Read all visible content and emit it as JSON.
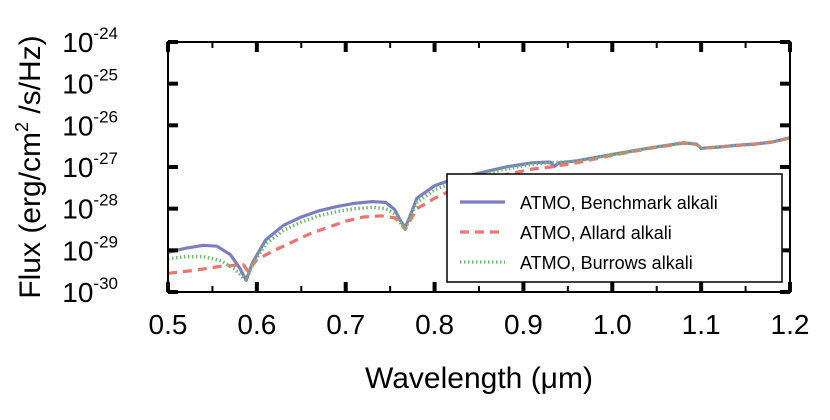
{
  "chart_data": {
    "type": "line",
    "xlabel": "Wavelength (μm)",
    "ylabel": "Flux (erg/cm² /s/Hz)",
    "ylabel_parts": {
      "pre": "Flux (erg/cm",
      "sup": "2",
      "post": " /s/Hz)"
    },
    "xlim": [
      0.5,
      1.2
    ],
    "ylim_log10": [
      -30,
      -24
    ],
    "x_ticks": [
      {
        "value": 0.5,
        "label": "0.5"
      },
      {
        "value": 0.6,
        "label": "0.6"
      },
      {
        "value": 0.7,
        "label": "0.7"
      },
      {
        "value": 0.8,
        "label": "0.8"
      },
      {
        "value": 0.9,
        "label": "0.9"
      },
      {
        "value": 1.0,
        "label": "1.0"
      },
      {
        "value": 1.1,
        "label": "1.1"
      },
      {
        "value": 1.2,
        "label": "1.2"
      }
    ],
    "y_ticks": [
      {
        "exp": -30,
        "base": "10",
        "sup": "-30"
      },
      {
        "exp": -29,
        "base": "10",
        "sup": "-29"
      },
      {
        "exp": -28,
        "base": "10",
        "sup": "-28"
      },
      {
        "exp": -27,
        "base": "10",
        "sup": "-27"
      },
      {
        "exp": -26,
        "base": "10",
        "sup": "-26"
      },
      {
        "exp": -25,
        "base": "10",
        "sup": "-25"
      },
      {
        "exp": -24,
        "base": "10",
        "sup": "-24"
      }
    ],
    "legend_position": "lower-right",
    "series": [
      {
        "name": "ATMO, Benchmark alkali",
        "color": "#7b7fc0",
        "style": "solid",
        "points": [
          [
            0.5,
            -29.05
          ],
          [
            0.52,
            -28.95
          ],
          [
            0.54,
            -28.88
          ],
          [
            0.555,
            -28.9
          ],
          [
            0.57,
            -29.1
          ],
          [
            0.58,
            -29.4
          ],
          [
            0.588,
            -29.72
          ],
          [
            0.595,
            -29.3
          ],
          [
            0.61,
            -28.75
          ],
          [
            0.63,
            -28.4
          ],
          [
            0.65,
            -28.2
          ],
          [
            0.67,
            -28.05
          ],
          [
            0.69,
            -27.95
          ],
          [
            0.71,
            -27.87
          ],
          [
            0.73,
            -27.83
          ],
          [
            0.745,
            -27.85
          ],
          [
            0.755,
            -28.02
          ],
          [
            0.762,
            -28.3
          ],
          [
            0.767,
            -28.45
          ],
          [
            0.772,
            -28.2
          ],
          [
            0.78,
            -27.75
          ],
          [
            0.8,
            -27.45
          ],
          [
            0.82,
            -27.3
          ],
          [
            0.85,
            -27.15
          ],
          [
            0.88,
            -27.0
          ],
          [
            0.91,
            -26.9
          ],
          [
            0.93,
            -26.88
          ],
          [
            0.935,
            -26.98
          ],
          [
            0.94,
            -26.9
          ],
          [
            0.96,
            -26.85
          ],
          [
            1.0,
            -26.7
          ],
          [
            1.04,
            -26.55
          ],
          [
            1.08,
            -26.42
          ],
          [
            1.095,
            -26.45
          ],
          [
            1.1,
            -26.55
          ],
          [
            1.12,
            -26.52
          ],
          [
            1.14,
            -26.48
          ],
          [
            1.16,
            -26.45
          ],
          [
            1.18,
            -26.4
          ],
          [
            1.2,
            -26.3
          ]
        ]
      },
      {
        "name": "ATMO, Allard alkali",
        "color": "#f0746e",
        "style": "dashed",
        "points": [
          [
            0.5,
            -29.55
          ],
          [
            0.53,
            -29.48
          ],
          [
            0.56,
            -29.38
          ],
          [
            0.585,
            -29.35
          ],
          [
            0.59,
            -29.5
          ],
          [
            0.6,
            -29.22
          ],
          [
            0.62,
            -29.0
          ],
          [
            0.64,
            -28.8
          ],
          [
            0.66,
            -28.6
          ],
          [
            0.68,
            -28.45
          ],
          [
            0.7,
            -28.3
          ],
          [
            0.72,
            -28.2
          ],
          [
            0.74,
            -28.17
          ],
          [
            0.755,
            -28.22
          ],
          [
            0.762,
            -28.35
          ],
          [
            0.767,
            -28.5
          ],
          [
            0.772,
            -28.3
          ],
          [
            0.78,
            -28.0
          ],
          [
            0.8,
            -27.75
          ],
          [
            0.82,
            -27.55
          ],
          [
            0.85,
            -27.35
          ],
          [
            0.88,
            -27.18
          ],
          [
            0.91,
            -27.05
          ],
          [
            0.93,
            -27.0
          ],
          [
            0.96,
            -26.9
          ],
          [
            1.0,
            -26.72
          ],
          [
            1.04,
            -26.56
          ],
          [
            1.08,
            -26.43
          ],
          [
            1.095,
            -26.46
          ],
          [
            1.1,
            -26.55
          ],
          [
            1.12,
            -26.52
          ],
          [
            1.14,
            -26.48
          ],
          [
            1.16,
            -26.45
          ],
          [
            1.18,
            -26.4
          ],
          [
            1.2,
            -26.3
          ]
        ]
      },
      {
        "name": "ATMO, Burrows alkali",
        "color": "#6dbb6d",
        "style": "dotted",
        "points": [
          [
            0.5,
            -29.2
          ],
          [
            0.52,
            -29.15
          ],
          [
            0.54,
            -29.15
          ],
          [
            0.56,
            -29.25
          ],
          [
            0.575,
            -29.45
          ],
          [
            0.588,
            -29.72
          ],
          [
            0.595,
            -29.35
          ],
          [
            0.61,
            -28.85
          ],
          [
            0.63,
            -28.52
          ],
          [
            0.65,
            -28.32
          ],
          [
            0.67,
            -28.17
          ],
          [
            0.69,
            -28.07
          ],
          [
            0.71,
            -28.0
          ],
          [
            0.73,
            -27.97
          ],
          [
            0.745,
            -28.0
          ],
          [
            0.755,
            -28.12
          ],
          [
            0.762,
            -28.35
          ],
          [
            0.767,
            -28.48
          ],
          [
            0.772,
            -28.25
          ],
          [
            0.78,
            -27.85
          ],
          [
            0.8,
            -27.55
          ],
          [
            0.82,
            -27.38
          ],
          [
            0.85,
            -27.2
          ],
          [
            0.88,
            -27.05
          ],
          [
            0.91,
            -26.93
          ],
          [
            0.93,
            -26.9
          ],
          [
            0.96,
            -26.86
          ],
          [
            1.0,
            -26.7
          ],
          [
            1.04,
            -26.55
          ],
          [
            1.08,
            -26.42
          ],
          [
            1.095,
            -26.45
          ],
          [
            1.1,
            -26.55
          ],
          [
            1.12,
            -26.52
          ],
          [
            1.14,
            -26.48
          ],
          [
            1.16,
            -26.45
          ],
          [
            1.18,
            -26.4
          ],
          [
            1.2,
            -26.3
          ]
        ]
      }
    ]
  }
}
